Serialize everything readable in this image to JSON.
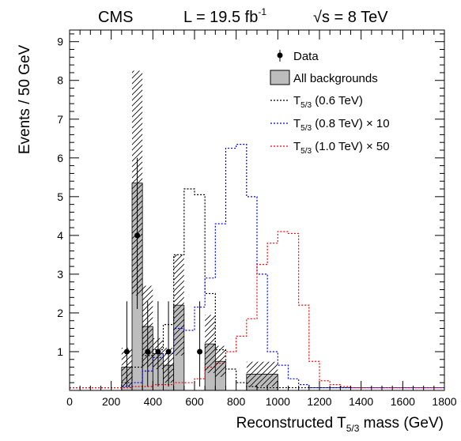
{
  "chart_data": {
    "type": "bar",
    "header": {
      "experiment": "CMS",
      "lumi_prefix": "L = 19.5 fb",
      "lumi_exponent": "-1",
      "energy": "√s = 8 TeV"
    },
    "xlabel": {
      "text": "Reconstructed T",
      "sub": "5/3",
      "suffix": " mass (GeV)"
    },
    "ylabel": "Events / 50 GeV",
    "xlim": [
      0,
      1800
    ],
    "ylim": [
      0,
      9.3
    ],
    "xticks": [
      "0",
      "200",
      "400",
      "600",
      "800",
      "1000",
      "1200",
      "1400",
      "1600",
      "1800"
    ],
    "yticks": [
      "1",
      "2",
      "3",
      "4",
      "5",
      "6",
      "7",
      "8",
      "9"
    ],
    "bin_width": 50,
    "legend": {
      "position": "top-right",
      "entries": [
        {
          "label": "Data",
          "sub": "",
          "suffix": ""
        },
        {
          "label": "All backgrounds",
          "sub": "",
          "suffix": ""
        },
        {
          "label": "T",
          "sub": "5/3",
          "suffix": " (0.6 TeV)"
        },
        {
          "label": "T",
          "sub": "5/3",
          "suffix": " (0.8 TeV) × 10"
        },
        {
          "label": "T",
          "sub": "5/3",
          "suffix": " (1.0 TeV) × 50"
        }
      ]
    },
    "colors": {
      "background": "#bdbdbd",
      "signal_06": "#000000",
      "signal_08": "#0000ff",
      "signal_10": "#ff0000"
    },
    "background": {
      "name": "All backgrounds",
      "bins": [
        {
          "x0": 250,
          "x1": 300,
          "value": 0.6,
          "error": 0.5
        },
        {
          "x0": 300,
          "x1": 350,
          "value": 5.35,
          "error": 2.9
        },
        {
          "x0": 350,
          "x1": 400,
          "value": 1.65,
          "error": 1.05
        },
        {
          "x0": 400,
          "x1": 450,
          "value": 0.95,
          "error": 0.4
        },
        {
          "x0": 450,
          "x1": 500,
          "value": 0.65,
          "error": 0.45
        },
        {
          "x0": 500,
          "x1": 550,
          "value": 2.2,
          "error": 1.3
        },
        {
          "x0": 550,
          "x1": 600,
          "value": 0.0,
          "error": 0.0
        },
        {
          "x0": 600,
          "x1": 650,
          "value": 0.0,
          "error": 0.0
        },
        {
          "x0": 650,
          "x1": 700,
          "value": 1.2,
          "error": 0.75
        },
        {
          "x0": 700,
          "x1": 750,
          "value": 0.75,
          "error": 0.4
        },
        {
          "x0": 750,
          "x1": 800,
          "value": 0.0,
          "error": 0.0
        },
        {
          "x0": 800,
          "x1": 850,
          "value": 0.0,
          "error": 0.0
        },
        {
          "x0": 850,
          "x1": 1000,
          "value": 0.42,
          "error": 0.32
        }
      ]
    },
    "data": {
      "name": "Data",
      "points": [
        {
          "x": 275,
          "y": 1,
          "err_up": 1.3,
          "err_down": 0.9
        },
        {
          "x": 325,
          "y": 4,
          "err_up": 2.0,
          "err_down": 1.9
        },
        {
          "x": 375,
          "y": 1,
          "err_up": 1.3,
          "err_down": 0.9
        },
        {
          "x": 425,
          "y": 1,
          "err_up": 1.3,
          "err_down": 0.9
        },
        {
          "x": 475,
          "y": 1,
          "err_up": 1.3,
          "err_down": 0.9
        },
        {
          "x": 625,
          "y": 1,
          "err_up": 1.3,
          "err_down": 0.9
        }
      ]
    },
    "signals": [
      {
        "name": "T5/3 (0.6 TeV)",
        "color": "#000000",
        "edges": [
          0,
          250,
          300,
          350,
          400,
          450,
          500,
          550,
          600,
          650,
          700,
          750,
          800,
          850,
          900,
          1800
        ],
        "values": [
          0.07,
          0.2,
          0.6,
          0.9,
          1.05,
          1.7,
          3.5,
          5.2,
          5.05,
          2.5,
          1.05,
          0.55,
          0.2,
          0.1,
          0.07
        ]
      },
      {
        "name": "T5/3 (0.8 TeV) × 10",
        "color": "#0000ff",
        "edges": [
          0,
          250,
          300,
          350,
          400,
          450,
          500,
          550,
          600,
          650,
          700,
          750,
          800,
          850,
          900,
          950,
          1000,
          1050,
          1100,
          1150,
          1800
        ],
        "values": [
          0.07,
          0.1,
          0.2,
          0.5,
          0.85,
          0.95,
          1.6,
          1.55,
          2.15,
          2.9,
          4.3,
          6.25,
          6.35,
          5.0,
          3.0,
          1.0,
          0.65,
          0.3,
          0.15,
          0.07
        ]
      },
      {
        "name": "T5/3 (1.0 TeV) × 50",
        "color": "#ff0000",
        "edges": [
          0,
          300,
          400,
          500,
          600,
          650,
          700,
          750,
          800,
          850,
          900,
          950,
          1000,
          1050,
          1100,
          1150,
          1200,
          1250,
          1300,
          1350,
          1800
        ],
        "values": [
          0.07,
          0.1,
          0.15,
          0.2,
          0.3,
          0.6,
          0.7,
          1.0,
          1.4,
          1.85,
          3.25,
          3.8,
          4.1,
          4.05,
          2.2,
          0.75,
          0.25,
          0.15,
          0.1,
          0.07
        ]
      }
    ]
  }
}
